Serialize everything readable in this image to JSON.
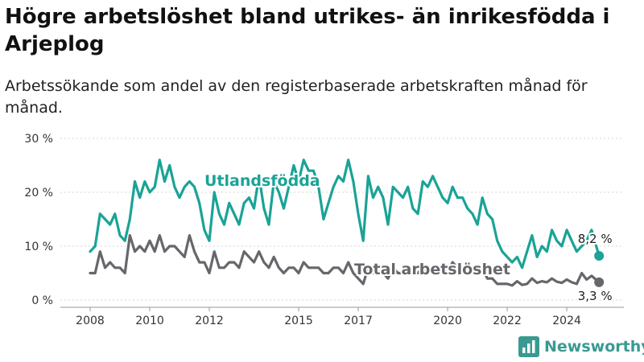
{
  "chart_data": {
    "type": "line",
    "title": "Högre arbetslöshet bland utrikes- än inrikesfödda i Arjeplog",
    "subtitle": "Arbetssökande som andel av den registerbaserade arbetskraften månad för månad.",
    "y_ticks": [
      "0 %",
      "10 %",
      "20 %",
      "30 %"
    ],
    "x_ticks": [
      "2008",
      "2010",
      "2012",
      "2015",
      "2017",
      "2020",
      "2022",
      "2024"
    ],
    "ylim": [
      0,
      30
    ],
    "xlim": [
      "2007-01",
      "2025-12"
    ],
    "grid": true,
    "series": [
      {
        "name": "Utlandsfödda",
        "color": "#1aa396",
        "end_label": "8,2 %",
        "points": [
          [
            "2008-01",
            9
          ],
          [
            "2008-03",
            10
          ],
          [
            "2008-05",
            16
          ],
          [
            "2008-07",
            15
          ],
          [
            "2008-09",
            14
          ],
          [
            "2008-11",
            16
          ],
          [
            "2009-01",
            12
          ],
          [
            "2009-03",
            11
          ],
          [
            "2009-05",
            15
          ],
          [
            "2009-07",
            22
          ],
          [
            "2009-09",
            19
          ],
          [
            "2009-11",
            22
          ],
          [
            "2010-01",
            20
          ],
          [
            "2010-03",
            21
          ],
          [
            "2010-05",
            26
          ],
          [
            "2010-07",
            22
          ],
          [
            "2010-09",
            25
          ],
          [
            "2010-11",
            21
          ],
          [
            "2011-01",
            19
          ],
          [
            "2011-03",
            21
          ],
          [
            "2011-05",
            22
          ],
          [
            "2011-07",
            21
          ],
          [
            "2011-09",
            18
          ],
          [
            "2011-11",
            13
          ],
          [
            "2012-01",
            11
          ],
          [
            "2012-03",
            20
          ],
          [
            "2012-05",
            16
          ],
          [
            "2012-07",
            14
          ],
          [
            "2012-09",
            18
          ],
          [
            "2012-11",
            16
          ],
          [
            "2013-01",
            14
          ],
          [
            "2013-03",
            18
          ],
          [
            "2013-05",
            19
          ],
          [
            "2013-07",
            17
          ],
          [
            "2013-09",
            23
          ],
          [
            "2013-11",
            17
          ],
          [
            "2014-01",
            14
          ],
          [
            "2014-03",
            22
          ],
          [
            "2014-05",
            20
          ],
          [
            "2014-07",
            17
          ],
          [
            "2014-09",
            21
          ],
          [
            "2014-11",
            25
          ],
          [
            "2015-01",
            22
          ],
          [
            "2015-03",
            26
          ],
          [
            "2015-05",
            24
          ],
          [
            "2015-07",
            24
          ],
          [
            "2015-09",
            21
          ],
          [
            "2015-11",
            15
          ],
          [
            "2016-01",
            18
          ],
          [
            "2016-03",
            21
          ],
          [
            "2016-05",
            23
          ],
          [
            "2016-07",
            22
          ],
          [
            "2016-09",
            26
          ],
          [
            "2016-11",
            22
          ],
          [
            "2017-01",
            16
          ],
          [
            "2017-03",
            11
          ],
          [
            "2017-05",
            23
          ],
          [
            "2017-07",
            19
          ],
          [
            "2017-09",
            21
          ],
          [
            "2017-11",
            19
          ],
          [
            "2018-01",
            14
          ],
          [
            "2018-03",
            21
          ],
          [
            "2018-05",
            20
          ],
          [
            "2018-07",
            19
          ],
          [
            "2018-09",
            21
          ],
          [
            "2018-11",
            17
          ],
          [
            "2019-01",
            16
          ],
          [
            "2019-03",
            22
          ],
          [
            "2019-05",
            21
          ],
          [
            "2019-07",
            23
          ],
          [
            "2019-09",
            21
          ],
          [
            "2019-11",
            19
          ],
          [
            "2020-01",
            18
          ],
          [
            "2020-03",
            21
          ],
          [
            "2020-05",
            19
          ],
          [
            "2020-07",
            19
          ],
          [
            "2020-09",
            17
          ],
          [
            "2020-11",
            16
          ],
          [
            "2021-01",
            14
          ],
          [
            "2021-03",
            19
          ],
          [
            "2021-05",
            16
          ],
          [
            "2021-07",
            15
          ],
          [
            "2021-09",
            11
          ],
          [
            "2021-11",
            9
          ],
          [
            "2022-01",
            8
          ],
          [
            "2022-03",
            7
          ],
          [
            "2022-05",
            8
          ],
          [
            "2022-07",
            6
          ],
          [
            "2022-09",
            9
          ],
          [
            "2022-11",
            12
          ],
          [
            "2023-01",
            8
          ],
          [
            "2023-03",
            10
          ],
          [
            "2023-05",
            9
          ],
          [
            "2023-07",
            13
          ],
          [
            "2023-09",
            11
          ],
          [
            "2023-11",
            10
          ],
          [
            "2024-01",
            13
          ],
          [
            "2024-03",
            11
          ],
          [
            "2024-05",
            9
          ],
          [
            "2024-07",
            10
          ],
          [
            "2024-09",
            11
          ],
          [
            "2024-11",
            13
          ],
          [
            "2025-02",
            8.2
          ]
        ]
      },
      {
        "name": "Total arbetslöshet",
        "color": "#68666b",
        "end_label": "3,3 %",
        "points": [
          [
            "2008-01",
            5
          ],
          [
            "2008-03",
            5
          ],
          [
            "2008-05",
            9
          ],
          [
            "2008-07",
            6
          ],
          [
            "2008-09",
            7
          ],
          [
            "2008-11",
            6
          ],
          [
            "2009-01",
            6
          ],
          [
            "2009-03",
            5
          ],
          [
            "2009-05",
            12
          ],
          [
            "2009-07",
            9
          ],
          [
            "2009-09",
            10
          ],
          [
            "2009-11",
            9
          ],
          [
            "2010-01",
            11
          ],
          [
            "2010-03",
            9
          ],
          [
            "2010-05",
            12
          ],
          [
            "2010-07",
            9
          ],
          [
            "2010-09",
            10
          ],
          [
            "2010-11",
            10
          ],
          [
            "2011-01",
            9
          ],
          [
            "2011-03",
            8
          ],
          [
            "2011-05",
            12
          ],
          [
            "2011-07",
            9
          ],
          [
            "2011-09",
            7
          ],
          [
            "2011-11",
            7
          ],
          [
            "2012-01",
            5
          ],
          [
            "2012-03",
            9
          ],
          [
            "2012-05",
            6
          ],
          [
            "2012-07",
            6
          ],
          [
            "2012-09",
            7
          ],
          [
            "2012-11",
            7
          ],
          [
            "2013-01",
            6
          ],
          [
            "2013-03",
            9
          ],
          [
            "2013-05",
            8
          ],
          [
            "2013-07",
            7
          ],
          [
            "2013-09",
            9
          ],
          [
            "2013-11",
            7
          ],
          [
            "2014-01",
            6
          ],
          [
            "2014-03",
            8
          ],
          [
            "2014-05",
            6
          ],
          [
            "2014-07",
            5
          ],
          [
            "2014-09",
            6
          ],
          [
            "2014-11",
            6
          ],
          [
            "2015-01",
            5
          ],
          [
            "2015-03",
            7
          ],
          [
            "2015-05",
            6
          ],
          [
            "2015-07",
            6
          ],
          [
            "2015-09",
            6
          ],
          [
            "2015-11",
            5
          ],
          [
            "2016-01",
            5
          ],
          [
            "2016-03",
            6
          ],
          [
            "2016-05",
            6
          ],
          [
            "2016-07",
            5
          ],
          [
            "2016-09",
            7
          ],
          [
            "2016-11",
            5
          ],
          [
            "2017-01",
            4
          ],
          [
            "2017-03",
            3
          ],
          [
            "2017-05",
            6
          ],
          [
            "2017-07",
            5
          ],
          [
            "2017-09",
            5
          ],
          [
            "2017-11",
            5
          ],
          [
            "2018-01",
            4
          ],
          [
            "2018-03",
            6
          ],
          [
            "2018-05",
            5
          ],
          [
            "2018-07",
            5
          ],
          [
            "2018-09",
            6
          ],
          [
            "2018-11",
            5
          ],
          [
            "2019-01",
            5
          ],
          [
            "2019-03",
            6
          ],
          [
            "2019-05",
            5
          ],
          [
            "2019-07",
            6
          ],
          [
            "2019-09",
            5
          ],
          [
            "2019-11",
            5
          ],
          [
            "2020-01",
            5
          ],
          [
            "2020-03",
            7
          ],
          [
            "2020-05",
            6
          ],
          [
            "2020-07",
            6
          ],
          [
            "2020-09",
            6
          ],
          [
            "2020-11",
            5
          ],
          [
            "2021-01",
            5
          ],
          [
            "2021-03",
            6
          ],
          [
            "2021-05",
            4
          ],
          [
            "2021-07",
            4
          ],
          [
            "2021-09",
            3
          ],
          [
            "2021-11",
            3
          ],
          [
            "2022-01",
            3
          ],
          [
            "2022-03",
            2.7
          ],
          [
            "2022-05",
            3.5
          ],
          [
            "2022-07",
            2.8
          ],
          [
            "2022-09",
            3
          ],
          [
            "2022-11",
            4
          ],
          [
            "2023-01",
            3.2
          ],
          [
            "2023-03",
            3.5
          ],
          [
            "2023-05",
            3.3
          ],
          [
            "2023-07",
            4
          ],
          [
            "2023-09",
            3.4
          ],
          [
            "2023-11",
            3.2
          ],
          [
            "2024-01",
            3.8
          ],
          [
            "2024-03",
            3.3
          ],
          [
            "2024-05",
            3
          ],
          [
            "2024-07",
            5
          ],
          [
            "2024-09",
            3.8
          ],
          [
            "2024-11",
            4.5
          ],
          [
            "2025-02",
            3.3
          ]
        ]
      }
    ]
  },
  "branding": {
    "name": "Newsworthy",
    "logo_icon": "bar-chart-icon",
    "color": "#3a9a92"
  }
}
